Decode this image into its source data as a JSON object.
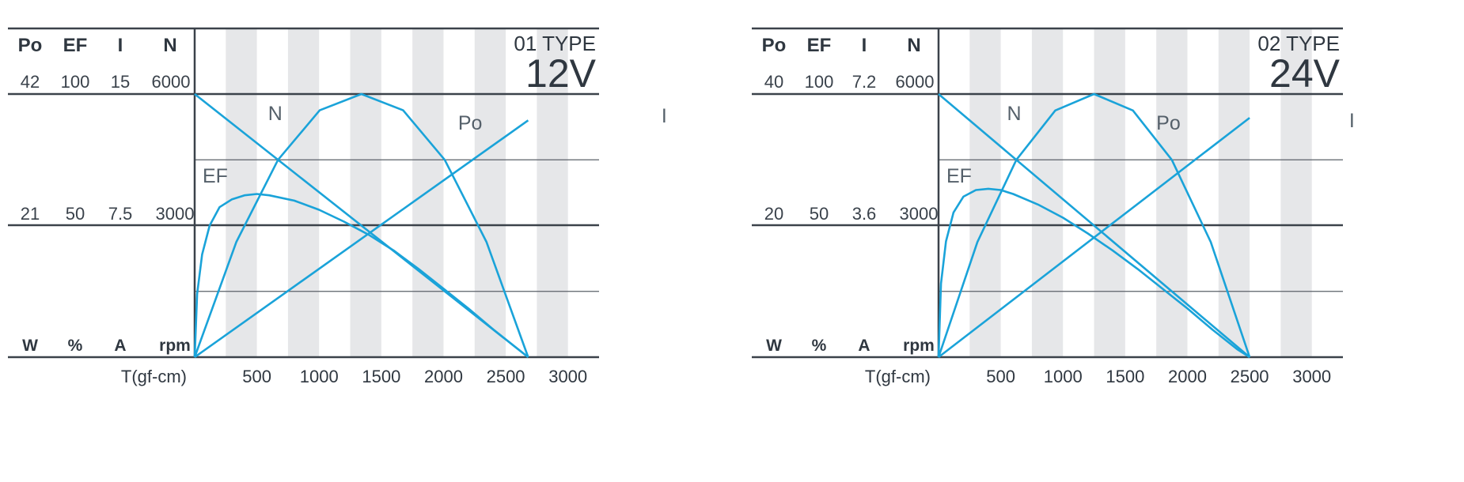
{
  "colors": {
    "curve": "#1aa3d9",
    "stripe": "#e6e7e9",
    "axis": "#3b424a",
    "grid": "#5a6068"
  },
  "chart_data": [
    {
      "type": "line",
      "type_label": "01 TYPE",
      "voltage": "12V",
      "headers": [
        "Po",
        "EF",
        "I",
        "N"
      ],
      "top_values": [
        "42",
        "100",
        "15",
        "6000"
      ],
      "mid_values": [
        "21",
        "50",
        "7.5",
        "3000"
      ],
      "units": [
        "W",
        "%",
        "A",
        "rpm"
      ],
      "xlabel": "T(gf-cm)",
      "x_ticks": [
        "500",
        "1000",
        "1500",
        "2000",
        "2500",
        "3000"
      ],
      "xlim": [
        0,
        3250
      ],
      "stall_torque": 2680,
      "no_load_current": 0,
      "series": [
        {
          "name": "N",
          "max": 6000,
          "x": [
            0,
            2680
          ],
          "y": [
            6000,
            0
          ]
        },
        {
          "name": "I",
          "max": 15,
          "x": [
            0,
            2680
          ],
          "y": [
            0,
            13.5
          ]
        },
        {
          "name": "Po",
          "max": 42,
          "x": [
            0,
            335,
            670,
            1005,
            1340,
            1675,
            2010,
            2345,
            2680
          ],
          "y": [
            0,
            18.4,
            31.5,
            39.4,
            42,
            39.4,
            31.5,
            18.4,
            0
          ]
        },
        {
          "name": "EF",
          "max": 100,
          "x": [
            0,
            20,
            60,
            120,
            200,
            300,
            400,
            500,
            600,
            800,
            1000,
            1200,
            1400,
            1600,
            1800,
            2000,
            2200,
            2400,
            2600,
            2680
          ],
          "y": [
            0,
            24,
            39,
            50,
            57,
            60,
            61.5,
            62,
            61.5,
            59.5,
            56,
            51.5,
            46.5,
            40.5,
            33.5,
            26,
            18.5,
            10.5,
            3,
            0
          ]
        }
      ]
    },
    {
      "type": "line",
      "type_label": "02 TYPE",
      "voltage": "24V",
      "headers": [
        "Po",
        "EF",
        "I",
        "N"
      ],
      "top_values": [
        "40",
        "100",
        "7.2",
        "6000"
      ],
      "mid_values": [
        "20",
        "50",
        "3.6",
        "3000"
      ],
      "units": [
        "W",
        "%",
        "A",
        "rpm"
      ],
      "xlabel": "T(gf-cm)",
      "x_ticks": [
        "500",
        "1000",
        "1500",
        "2000",
        "2500",
        "3000"
      ],
      "xlim": [
        0,
        3250
      ],
      "stall_torque": 2500,
      "series": [
        {
          "name": "N",
          "max": 6000,
          "x": [
            0,
            2500
          ],
          "y": [
            6000,
            0
          ]
        },
        {
          "name": "I",
          "max": 7.2,
          "x": [
            0,
            2500
          ],
          "y": [
            0,
            6.55
          ]
        },
        {
          "name": "Po",
          "max": 40,
          "x": [
            0,
            312,
            625,
            938,
            1250,
            1562,
            1875,
            2188,
            2500
          ],
          "y": [
            0,
            17.5,
            30,
            37.5,
            40,
            37.5,
            30,
            17.5,
            0
          ]
        },
        {
          "name": "EF",
          "max": 100,
          "x": [
            0,
            20,
            60,
            120,
            200,
            300,
            400,
            500,
            600,
            800,
            1000,
            1200,
            1400,
            1600,
            1800,
            2000,
            2200,
            2400,
            2500
          ],
          "y": [
            0,
            28,
            44,
            55,
            61,
            63.5,
            64,
            63.5,
            62,
            58,
            53,
            47,
            40.5,
            33.5,
            26,
            18.5,
            10.5,
            3,
            0
          ]
        }
      ]
    }
  ]
}
